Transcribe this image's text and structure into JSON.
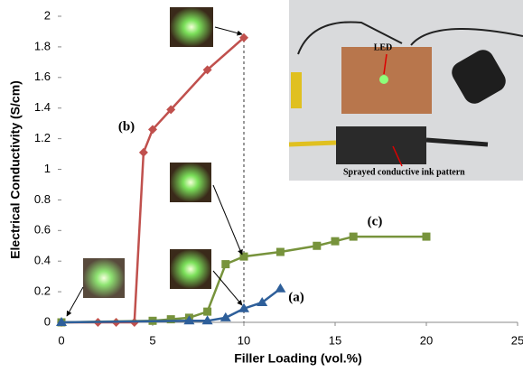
{
  "chart_data": {
    "type": "line",
    "xlabel": "Filler Loading (vol.%)",
    "ylabel": "Electrical Conductivity (S/cm)",
    "xlim": [
      0,
      25
    ],
    "xticks": [
      0,
      5,
      10,
      15,
      20,
      25
    ],
    "ylim": [
      0,
      2
    ],
    "yticks": [
      0,
      0.2,
      0.4,
      0.6,
      0.8,
      1,
      1.2,
      1.4,
      1.6,
      1.8,
      2
    ],
    "vline": 10,
    "series": [
      {
        "name": "(b)",
        "color": "#c0504d",
        "marker": "diamond",
        "x": [
          0,
          2,
          3,
          4,
          4.5,
          5,
          6,
          8,
          10
        ],
        "values": [
          0,
          0,
          0,
          0,
          1.11,
          1.26,
          1.39,
          1.65,
          1.86
        ]
      },
      {
        "name": "(c)",
        "color": "#77933c",
        "marker": "square",
        "x": [
          0,
          5,
          6,
          7,
          8,
          9,
          10,
          12,
          14,
          15,
          16,
          20
        ],
        "values": [
          0,
          0.01,
          0.02,
          0.03,
          0.07,
          0.38,
          0.43,
          0.46,
          0.5,
          0.53,
          0.56,
          0.56
        ]
      },
      {
        "name": "(a)",
        "color": "#2e5f9a",
        "marker": "triangle",
        "x": [
          0,
          7,
          8,
          9,
          10,
          11,
          12
        ],
        "values": [
          0,
          0.01,
          0.01,
          0.03,
          0.09,
          0.13,
          0.22
        ]
      }
    ],
    "annotations": [
      "LED",
      "Sprayed conductive ink pattern"
    ]
  }
}
